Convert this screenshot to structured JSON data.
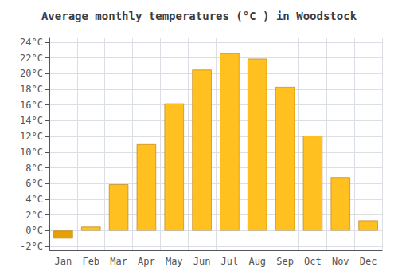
{
  "chart_data": {
    "type": "bar",
    "title": "Average monthly temperatures (°C ) in Woodstock",
    "categories": [
      "Jan",
      "Feb",
      "Mar",
      "Apr",
      "May",
      "Jun",
      "Jul",
      "Aug",
      "Sep",
      "Oct",
      "Nov",
      "Dec"
    ],
    "values": [
      -1.0,
      0.5,
      5.9,
      11.0,
      16.2,
      20.5,
      22.6,
      21.9,
      18.3,
      12.1,
      6.8,
      1.3
    ],
    "colors": [
      "#E8A000",
      "#FFC020",
      "#FFC020",
      "#FFC020",
      "#FFC020",
      "#FFC020",
      "#FFC020",
      "#FFC020",
      "#FFC020",
      "#FFC020",
      "#FFC020",
      "#FFC020"
    ],
    "ylim": [
      -2.5,
      24.5
    ],
    "yticks": [
      {
        "value": -2,
        "label": "-2°C"
      },
      {
        "value": 0,
        "label": "0°C"
      },
      {
        "value": 2,
        "label": "2°C"
      },
      {
        "value": 4,
        "label": "4°C"
      },
      {
        "value": 6,
        "label": "6°C"
      },
      {
        "value": 8,
        "label": "8°C"
      },
      {
        "value": 10,
        "label": "10°C"
      },
      {
        "value": 12,
        "label": "12°C"
      },
      {
        "value": 14,
        "label": "14°C"
      },
      {
        "value": 16,
        "label": "16°C"
      },
      {
        "value": 18,
        "label": "18°C"
      },
      {
        "value": 20,
        "label": "20°C"
      },
      {
        "value": 22,
        "label": "22°C"
      },
      {
        "value": 24,
        "label": "24°C"
      }
    ],
    "grid": true
  }
}
